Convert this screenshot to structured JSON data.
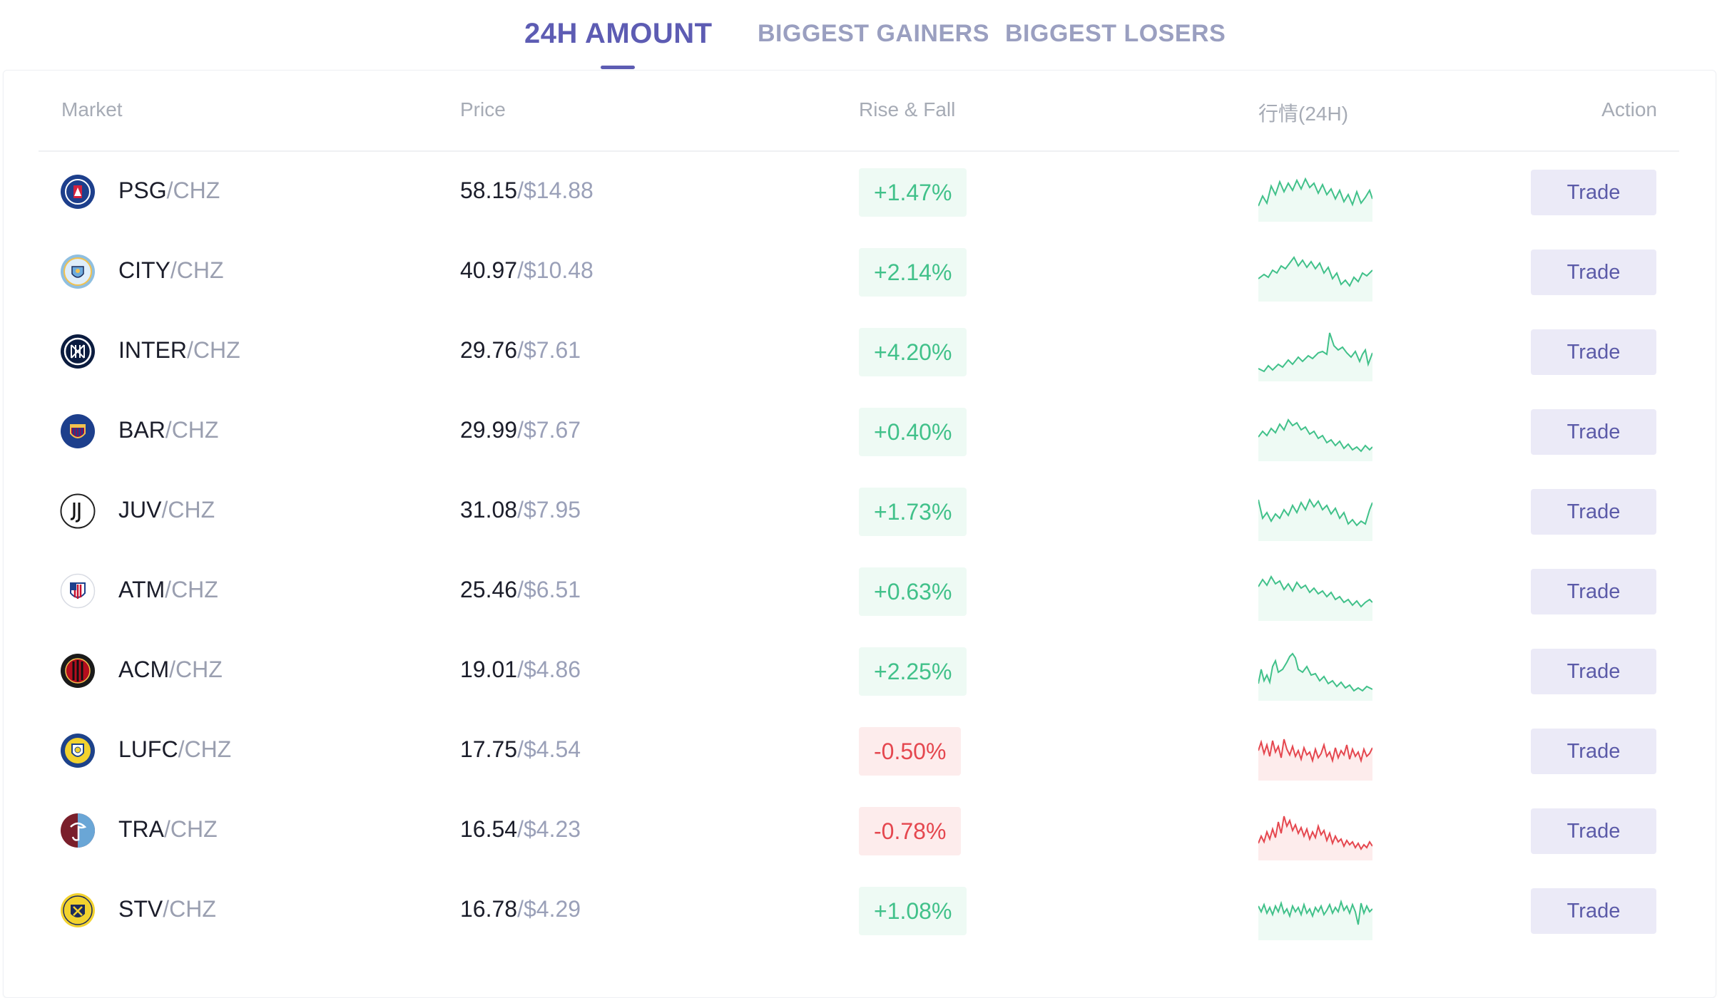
{
  "tabs": [
    {
      "label": "24H AMOUNT",
      "active": true
    },
    {
      "label": "BIGGEST GAINERS",
      "active": false
    },
    {
      "label": "BIGGEST LOSERS",
      "active": false
    }
  ],
  "table": {
    "headers": {
      "market": "Market",
      "price": "Price",
      "change": "Rise & Fall",
      "chart": "行情(24H)",
      "action": "Action"
    },
    "rows": [
      {
        "base": "PSG",
        "quote": "/CHZ",
        "price_chz": "58.15",
        "price_usd": "/$14.88",
        "change": "+1.47%",
        "trend": "up",
        "action": "Trade",
        "logo_icon": "psg-logo-icon",
        "logo_color": "#1d3f8c"
      },
      {
        "base": "CITY",
        "quote": "/CHZ",
        "price_chz": "40.97",
        "price_usd": "/$10.48",
        "change": "+2.14%",
        "trend": "up",
        "action": "Trade",
        "logo_icon": "man-city-logo-icon",
        "logo_color": "#8fbfe0"
      },
      {
        "base": "INTER",
        "quote": "/CHZ",
        "price_chz": "29.76",
        "price_usd": "/$7.61",
        "change": "+4.20%",
        "trend": "up",
        "action": "Trade",
        "logo_icon": "inter-logo-icon",
        "logo_color": "#0b1c3f"
      },
      {
        "base": "BAR",
        "quote": "/CHZ",
        "price_chz": "29.99",
        "price_usd": "/$7.67",
        "change": "+0.40%",
        "trend": "up",
        "action": "Trade",
        "logo_icon": "barcelona-logo-icon",
        "logo_color": "#1d3f8c"
      },
      {
        "base": "JUV",
        "quote": "/CHZ",
        "price_chz": "31.08",
        "price_usd": "/$7.95",
        "change": "+1.73%",
        "trend": "up",
        "action": "Trade",
        "logo_icon": "juventus-logo-icon",
        "logo_color": "#111111"
      },
      {
        "base": "ATM",
        "quote": "/CHZ",
        "price_chz": "25.46",
        "price_usd": "/$6.51",
        "change": "+0.63%",
        "trend": "up",
        "action": "Trade",
        "logo_icon": "atletico-logo-icon",
        "logo_color": "#c8102e"
      },
      {
        "base": "ACM",
        "quote": "/CHZ",
        "price_chz": "19.01",
        "price_usd": "/$4.86",
        "change": "+2.25%",
        "trend": "up",
        "action": "Trade",
        "logo_icon": "ac-milan-logo-icon",
        "logo_color": "#b30d1d"
      },
      {
        "base": "LUFC",
        "quote": "/CHZ",
        "price_chz": "17.75",
        "price_usd": "/$4.54",
        "change": "-0.50%",
        "trend": "down",
        "action": "Trade",
        "logo_icon": "leeds-logo-icon",
        "logo_color": "#1d428a"
      },
      {
        "base": "TRA",
        "quote": "/CHZ",
        "price_chz": "16.54",
        "price_usd": "/$4.23",
        "change": "-0.78%",
        "trend": "down",
        "action": "Trade",
        "logo_icon": "trabzonspor-logo-icon",
        "logo_color": "#7a1f2b"
      },
      {
        "base": "STV",
        "quote": "/CHZ",
        "price_chz": "16.78",
        "price_usd": "/$4.29",
        "change": "+1.08%",
        "trend": "up",
        "action": "Trade",
        "logo_icon": "stvv-logo-icon",
        "logo_color": "#f2d22e"
      }
    ]
  },
  "colors": {
    "accent": "#5d5cb3",
    "up": "#41c18a",
    "down": "#e5474f",
    "trade_bg": "#ebeaf7"
  }
}
